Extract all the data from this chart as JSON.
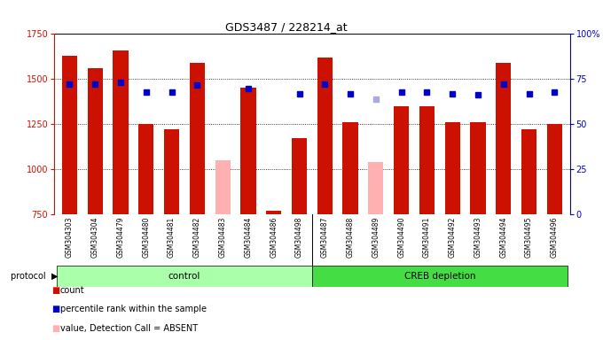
{
  "title": "GDS3487 / 228214_at",
  "samples": [
    "GSM304303",
    "GSM304304",
    "GSM304479",
    "GSM304480",
    "GSM304481",
    "GSM304482",
    "GSM304483",
    "GSM304484",
    "GSM304486",
    "GSM304498",
    "GSM304487",
    "GSM304488",
    "GSM304489",
    "GSM304490",
    "GSM304491",
    "GSM304492",
    "GSM304493",
    "GSM304494",
    "GSM304495",
    "GSM304496"
  ],
  "count_values": [
    1630,
    1560,
    1660,
    1250,
    1220,
    1590,
    null,
    1450,
    770,
    1170,
    1620,
    1260,
    null,
    1350,
    1350,
    1260,
    1260,
    1590,
    1220,
    1250
  ],
  "count_absent": [
    false,
    false,
    false,
    false,
    false,
    false,
    true,
    false,
    false,
    false,
    false,
    false,
    true,
    false,
    false,
    false,
    false,
    false,
    false,
    false
  ],
  "absent_values": [
    null,
    null,
    null,
    null,
    null,
    null,
    1050,
    null,
    null,
    null,
    null,
    null,
    1040,
    null,
    null,
    null,
    null,
    null,
    null,
    null
  ],
  "rank_values": [
    1470,
    1470,
    1480,
    1430,
    1430,
    1465,
    null,
    1445,
    null,
    1420,
    1470,
    1420,
    null,
    1430,
    1430,
    1420,
    1415,
    1470,
    1420,
    1430
  ],
  "rank_absent": [
    false,
    false,
    false,
    false,
    false,
    false,
    false,
    false,
    false,
    false,
    false,
    false,
    true,
    false,
    false,
    false,
    false,
    false,
    false,
    false
  ],
  "absent_rank_values": [
    null,
    null,
    null,
    null,
    null,
    null,
    null,
    null,
    null,
    null,
    null,
    null,
    1390,
    null,
    null,
    null,
    null,
    null,
    null,
    null
  ],
  "control_indices": [
    0,
    1,
    2,
    3,
    4,
    5,
    6,
    7,
    8,
    9
  ],
  "creb_indices": [
    10,
    11,
    12,
    13,
    14,
    15,
    16,
    17,
    18,
    19
  ],
  "ylim": [
    750,
    1750
  ],
  "yticks": [
    750,
    1000,
    1250,
    1500,
    1750
  ],
  "right_yticks": [
    0,
    25,
    50,
    75,
    100
  ],
  "right_ytick_labels": [
    "0",
    "25",
    "50",
    "75",
    "100%"
  ],
  "right_ylim": [
    0,
    100
  ],
  "bar_color": "#cc1100",
  "absent_bar_color": "#ffb0b0",
  "rank_color": "#0000cc",
  "absent_rank_color": "#aaaadd",
  "plot_bg": "#ffffff",
  "strip_bg": "#d8d8d8",
  "control_color": "#aaffaa",
  "creb_color": "#44dd44"
}
